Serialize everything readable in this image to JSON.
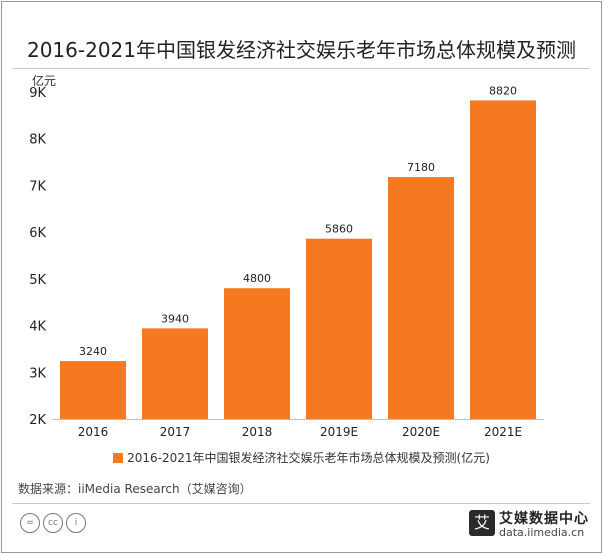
{
  "header": {
    "title": "2016-2021年中国银发经济社交娱乐老年市场总体规模及预测",
    "unit": "亿元"
  },
  "chart_data": {
    "type": "bar",
    "categories": [
      "2016",
      "2017",
      "2018",
      "2019E",
      "2020E",
      "2021E"
    ],
    "series": [
      {
        "name": "2016-2021年中国银发经济社交娱乐老年市场总体规模及预测(亿元)",
        "values": [
          3240,
          3940,
          4800,
          5860,
          7180,
          8820
        ],
        "color": "#f47920"
      }
    ],
    "data_labels": [
      "3240",
      "3940",
      "4800",
      "5860",
      "7180",
      "8820"
    ],
    "yticks": [
      2000,
      3000,
      4000,
      5000,
      6000,
      7000,
      8000,
      9000
    ],
    "ytick_labels": [
      "2K",
      "3K",
      "4K",
      "5K",
      "6K",
      "7K",
      "8K",
      "9K"
    ],
    "ylim": [
      2000,
      9000
    ],
    "ylabel": "亿元",
    "legend_position": "bottom",
    "grid": false
  },
  "footer": {
    "source": "数据来源：iiMedia Research（艾媒咨询）",
    "brand_name": "艾媒数据中心",
    "brand_url": "data.iimedia.cn",
    "brand_logo_char": "艾",
    "license_icons": [
      "=",
      "cc",
      "i"
    ]
  }
}
